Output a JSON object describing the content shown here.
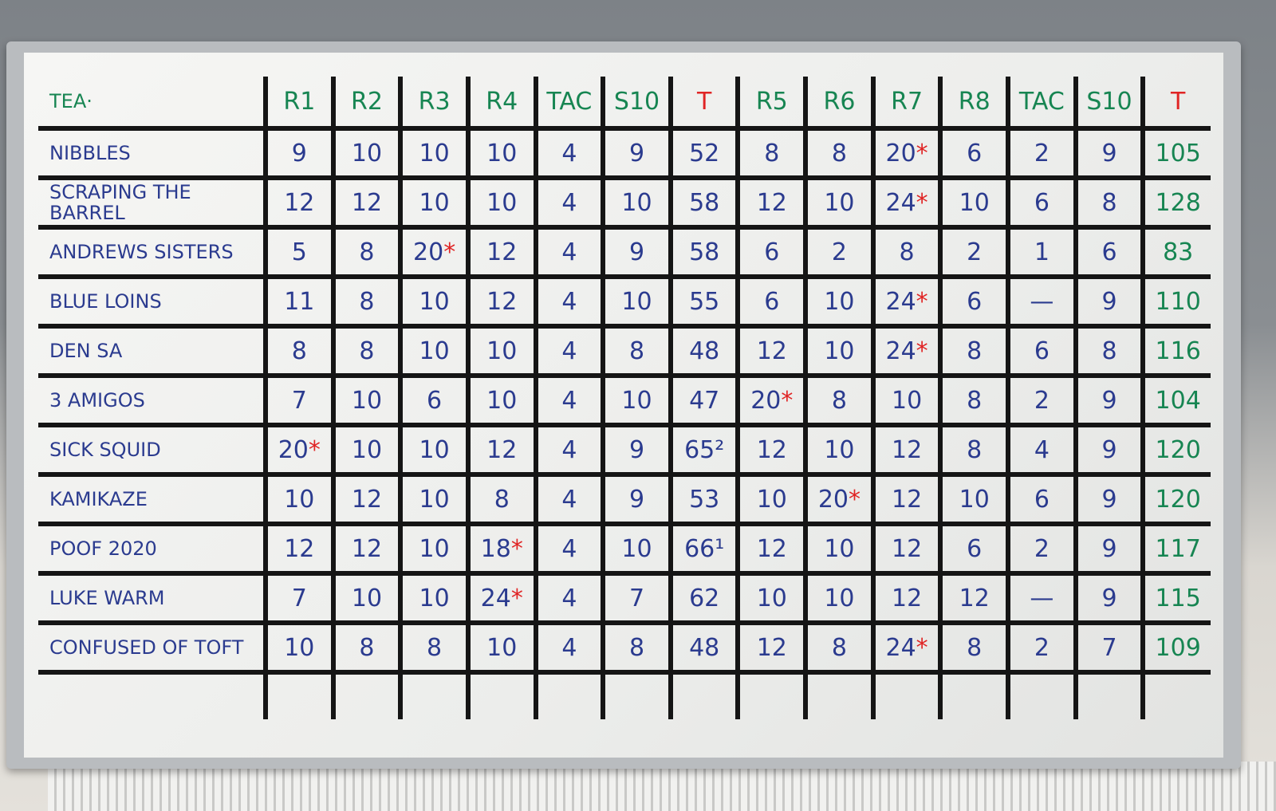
{
  "board": {
    "header": [
      "TEA·",
      "R1",
      "R2",
      "R3",
      "R4",
      "TAC",
      "S10",
      "T",
      "R5",
      "R6",
      "R7",
      "R8",
      "TAC",
      "S10",
      "T"
    ],
    "rows": [
      [
        "NIBBLES",
        "9",
        "10",
        "10",
        "10",
        "4",
        "9",
        "52",
        "8",
        "8",
        "20*",
        "6",
        "2",
        "9",
        "105"
      ],
      [
        "SCRAPING THE BARREL",
        "12",
        "12",
        "10",
        "10",
        "4",
        "10",
        "58",
        "12",
        "10",
        "24*",
        "10",
        "6",
        "8",
        "128"
      ],
      [
        "ANDREWS SISTERS",
        "5",
        "8",
        "20*",
        "12",
        "4",
        "9",
        "58",
        "6",
        "2",
        "8",
        "2",
        "1",
        "6",
        "83"
      ],
      [
        "BLUE LOINS",
        "11",
        "8",
        "10",
        "12",
        "4",
        "10",
        "55",
        "6",
        "10",
        "24*",
        "6",
        "—",
        "9",
        "110"
      ],
      [
        "DEN SA",
        "8",
        "8",
        "10",
        "10",
        "4",
        "8",
        "48",
        "12",
        "10",
        "24*",
        "8",
        "6",
        "8",
        "116"
      ],
      [
        "3 AMIGOS",
        "7",
        "10",
        "6",
        "10",
        "4",
        "10",
        "47",
        "20*",
        "8",
        "10",
        "8",
        "2",
        "9",
        "104"
      ],
      [
        "SICK SQUID",
        "20*",
        "10",
        "10",
        "12",
        "4",
        "9",
        "65²",
        "12",
        "10",
        "12",
        "8",
        "4",
        "9",
        "120"
      ],
      [
        "KAMIKAZE",
        "10",
        "12",
        "10",
        "8",
        "4",
        "9",
        "53",
        "10",
        "20*",
        "12",
        "10",
        "6",
        "9",
        "120"
      ],
      [
        "POOF 2020",
        "12",
        "12",
        "10",
        "18*",
        "4",
        "10",
        "66¹",
        "12",
        "10",
        "12",
        "6",
        "2",
        "9",
        "117"
      ],
      [
        "LUKE WARM",
        "7",
        "10",
        "10",
        "24*",
        "4",
        "7",
        "62",
        "10",
        "10",
        "12",
        "12",
        "—",
        "9",
        "115"
      ],
      [
        "CONFUSED OF TOFT",
        "10",
        "8",
        "8",
        "10",
        "4",
        "8",
        "48",
        "12",
        "8",
        "24*",
        "8",
        "2",
        "7",
        "109"
      ]
    ]
  }
}
